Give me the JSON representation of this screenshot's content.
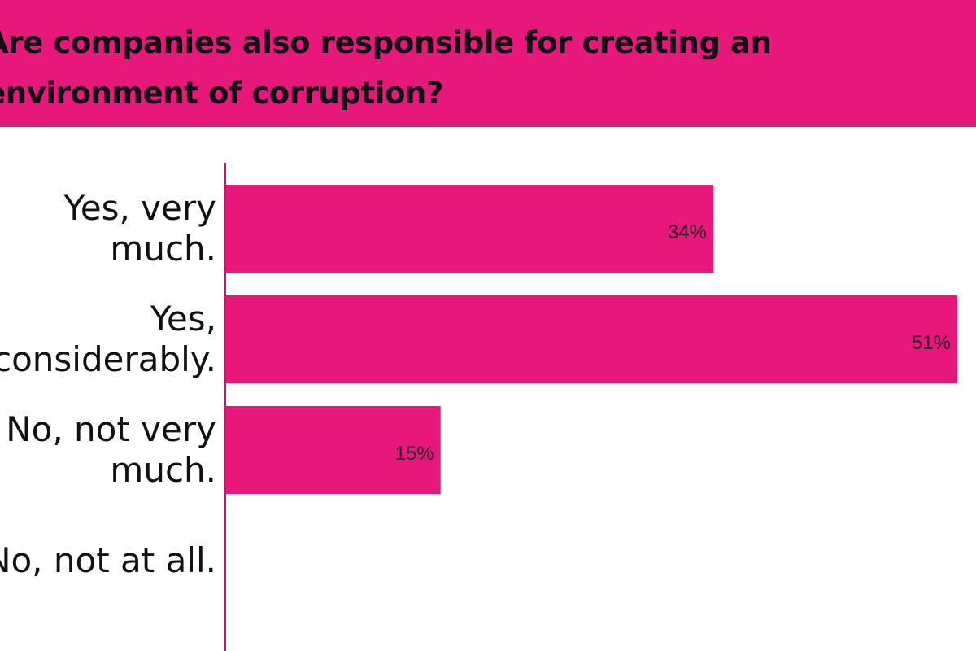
{
  "header": {
    "title": "Are companies also responsible for creating an environment of corruption?"
  },
  "colors": {
    "bar": "#e8177b",
    "axis": "#c2186b",
    "header_bg": "#e8177b",
    "text": "#111111"
  },
  "chart_data": {
    "type": "bar",
    "orientation": "horizontal",
    "title": "Are companies also responsible for creating an environment of corruption?",
    "categories": [
      [
        "Yes, very",
        "much."
      ],
      [
        "Yes,",
        "considerably."
      ],
      [
        "No, not very",
        "much."
      ],
      [
        "No, not at all."
      ]
    ],
    "values": [
      34,
      51,
      15,
      0
    ],
    "value_labels": [
      "34%",
      "51%",
      "15%",
      ""
    ],
    "xlim": [
      0,
      51
    ],
    "grid": false,
    "legend": "none"
  }
}
